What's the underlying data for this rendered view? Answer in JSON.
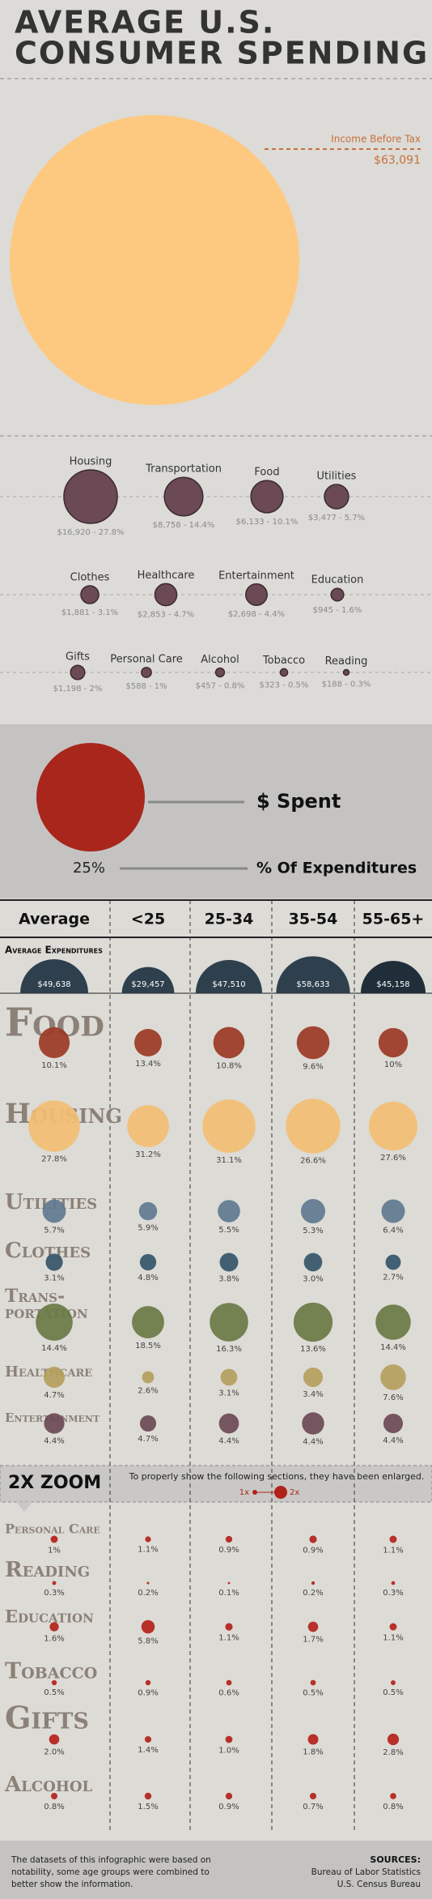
{
  "header": {
    "title_lines": [
      "AVERAGE U.S.",
      "CONSUMER SPENDING"
    ]
  },
  "income": {
    "label": "Income Before Tax",
    "amount": 63091,
    "amount_label": "$63,091",
    "color": "#fdc981"
  },
  "category_color": "#6b4a55",
  "category_rows": [
    [
      {
        "name": "Housing",
        "amount": 16920,
        "label": "$16,920 - 27.8%"
      },
      {
        "name": "Transportation",
        "amount": 8758,
        "label": "$8,758 - 14.4%"
      },
      {
        "name": "Food",
        "amount": 6133,
        "label": "$6,133 - 10.1%"
      },
      {
        "name": "Utilities",
        "amount": 3477,
        "label": "$3,477 - 5.7%"
      }
    ],
    [
      {
        "name": "Clothes",
        "amount": 1881,
        "label": "$1,881 - 3.1%"
      },
      {
        "name": "Healthcare",
        "amount": 2853,
        "label": "$2,853 - 4.7%"
      },
      {
        "name": "Entertainment",
        "amount": 2698,
        "label": "$2,698 - 4.4%"
      },
      {
        "name": "Education",
        "amount": 945,
        "label": "$945 - 1.6%"
      }
    ],
    [
      {
        "name": "Gifts",
        "amount": 1198,
        "label": "$1,198 - 2%"
      },
      {
        "name": "Personal Care",
        "amount": 588,
        "label": "$588 - 1%"
      },
      {
        "name": "Alcohol",
        "amount": 457,
        "label": "$457 - 0.8%"
      },
      {
        "name": "Tobacco",
        "amount": 323,
        "label": "$323 - 0.5%"
      },
      {
        "name": "Reading",
        "amount": 188,
        "label": "$188 - 0.3%"
      }
    ]
  ],
  "legend": {
    "spent": "$ Spent",
    "sample_pct": "25%",
    "pct_label": "% Of Expenditures"
  },
  "table": {
    "columns": [
      "Average",
      "<25",
      "25-34",
      "35-54",
      "55-65+"
    ],
    "expenditure_label": "Average Expenditures",
    "expenditures": [
      49638,
      29457,
      47510,
      58633,
      45158
    ],
    "expenditure_labels": [
      "$49,638",
      "$29,457",
      "$47,510",
      "$58,633",
      "$45,158"
    ],
    "rows": [
      {
        "name_lines": [
          "Food"
        ],
        "color": "#9a3a24",
        "values": [
          10.1,
          13.4,
          10.8,
          9.6,
          10
        ],
        "value_labels": [
          "10.1%",
          "13.4%",
          "10.8%",
          "9.6%",
          "10%"
        ]
      },
      {
        "name_lines": [
          "Housing"
        ],
        "color": "#f2bf74",
        "values": [
          27.8,
          31.2,
          31.1,
          26.6,
          27.6
        ],
        "value_labels": [
          "27.8%",
          "31.2%",
          "31.1%",
          "26.6%",
          "27.6%"
        ]
      },
      {
        "name_lines": [
          "Utilities"
        ],
        "color": "#5f7a90",
        "values": [
          5.7,
          5.9,
          5.5,
          5.3,
          6.4
        ],
        "value_labels": [
          "5.7%",
          "5.9%",
          "5.5%",
          "5.3%",
          "6.4%"
        ]
      },
      {
        "name_lines": [
          "Clothes"
        ],
        "color": "#35566a",
        "values": [
          3.1,
          4.8,
          3.8,
          3.0,
          2.7
        ],
        "value_labels": [
          "3.1%",
          "4.8%",
          "3.8%",
          "3.0%",
          "2.7%"
        ]
      },
      {
        "name_lines": [
          "Trans-",
          "portation"
        ],
        "color": "#6a7a45",
        "values": [
          14.4,
          18.5,
          16.3,
          13.6,
          14.4
        ],
        "value_labels": [
          "14.4%",
          "18.5%",
          "16.3%",
          "13.6%",
          "14.4%"
        ]
      },
      {
        "name_lines": [
          "Healthcare"
        ],
        "color": "#b59f5e",
        "values": [
          4.7,
          2.6,
          3.1,
          3.4,
          7.6
        ],
        "value_labels": [
          "4.7%",
          "2.6%",
          "3.1%",
          "3.4%",
          "7.6%"
        ]
      },
      {
        "name_lines": [
          "Entertainment"
        ],
        "color": "#6b4a55",
        "values": [
          4.4,
          4.7,
          4.4,
          4.4,
          4.4
        ],
        "value_labels": [
          "4.4%",
          "4.7%",
          "4.4%",
          "4.4%",
          "4.4%"
        ]
      }
    ],
    "zoom_rows": [
      {
        "name_lines": [
          "Personal Care"
        ],
        "color": "#b3221a",
        "values": [
          1,
          1.1,
          0.9,
          0.9,
          1.1
        ],
        "value_labels": [
          "1%",
          "1.1%",
          "0.9%",
          "0.9%",
          "1.1%"
        ]
      },
      {
        "name_lines": [
          "Reading"
        ],
        "color": "#b3221a",
        "values": [
          0.3,
          0.2,
          0.1,
          0.2,
          0.3
        ],
        "value_labels": [
          "0.3%",
          "0.2%",
          "0.1%",
          "0.2%",
          "0.3%"
        ]
      },
      {
        "name_lines": [
          "Education"
        ],
        "color": "#b3221a",
        "values": [
          1.6,
          5.8,
          1.1,
          1.7,
          1.1
        ],
        "value_labels": [
          "1.6%",
          "5.8%",
          "1.1%",
          "1.7%",
          "1.1%"
        ]
      },
      {
        "name_lines": [
          "Tobacco"
        ],
        "color": "#b3221a",
        "values": [
          0.5,
          0.9,
          0.6,
          0.5,
          0.5
        ],
        "value_labels": [
          "0.5%",
          "0.9%",
          "0.6%",
          "0.5%",
          "0.5%"
        ]
      },
      {
        "name_lines": [
          "Gifts"
        ],
        "color": "#b3221a",
        "values": [
          2.0,
          1.4,
          1.0,
          1.8,
          2.8
        ],
        "value_labels": [
          "2.0%",
          "1.4%",
          "1.0%",
          "1.8%",
          "2.8%"
        ]
      },
      {
        "name_lines": [
          "Alcohol"
        ],
        "color": "#b3221a",
        "values": [
          0.8,
          1.5,
          0.9,
          0.7,
          0.8
        ],
        "value_labels": [
          "0.8%",
          "1.5%",
          "0.9%",
          "0.7%",
          "0.8%"
        ]
      }
    ]
  },
  "zoom": {
    "title": "2X ZOOM",
    "note": "To properly show the following sections, they have been enlarged.",
    "small": "1x",
    "large": "2x"
  },
  "footer": {
    "note_lines": [
      "The datasets of this infographic were based on",
      "notability, some age groups were combined to",
      "better show the information."
    ],
    "sources_title": "SOURCES:",
    "sources": [
      "Bureau of Labor Statistics",
      "U.S. Census Bureau"
    ]
  }
}
